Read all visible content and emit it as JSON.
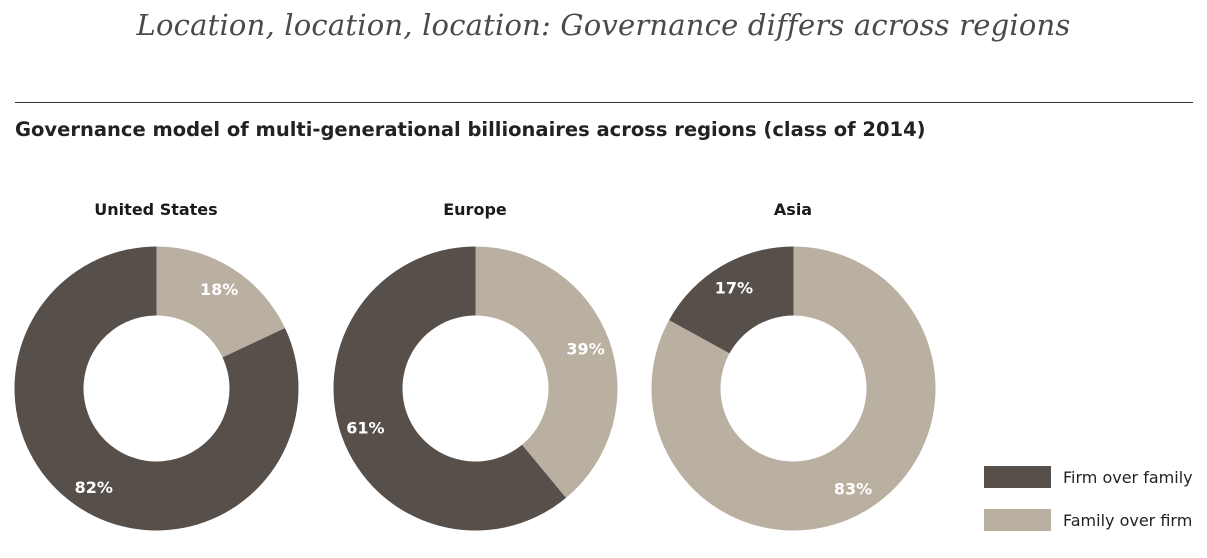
{
  "headline": "Location, location, location: Governance differs across regions",
  "chart_data": {
    "type": "pie",
    "title": "Governance model of multi-generational billionaires across regions (class of 2014)",
    "legend_placement": "bottom-right",
    "series_names": [
      "Firm over family",
      "Family over firm"
    ],
    "colors": {
      "Firm over family": "#574f49",
      "Family over firm": "#bab0a2"
    },
    "charts": [
      {
        "region": "United States",
        "slices": [
          {
            "name": "Firm over family",
            "value": 82,
            "label": "82%"
          },
          {
            "name": "Family over firm",
            "value": 18,
            "label": "18%"
          }
        ]
      },
      {
        "region": "Europe",
        "slices": [
          {
            "name": "Firm over family",
            "value": 61,
            "label": "61%"
          },
          {
            "name": "Family over firm",
            "value": 39,
            "label": "39%"
          }
        ]
      },
      {
        "region": "Asia",
        "slices": [
          {
            "name": "Firm over family",
            "value": 17,
            "label": "17%"
          },
          {
            "name": "Family over firm",
            "value": 83,
            "label": "83%"
          }
        ]
      }
    ]
  },
  "legend": {
    "items": [
      {
        "label": "Firm over family",
        "color": "#574f49"
      },
      {
        "label": "Family over firm",
        "color": "#bab0a2"
      }
    ]
  }
}
